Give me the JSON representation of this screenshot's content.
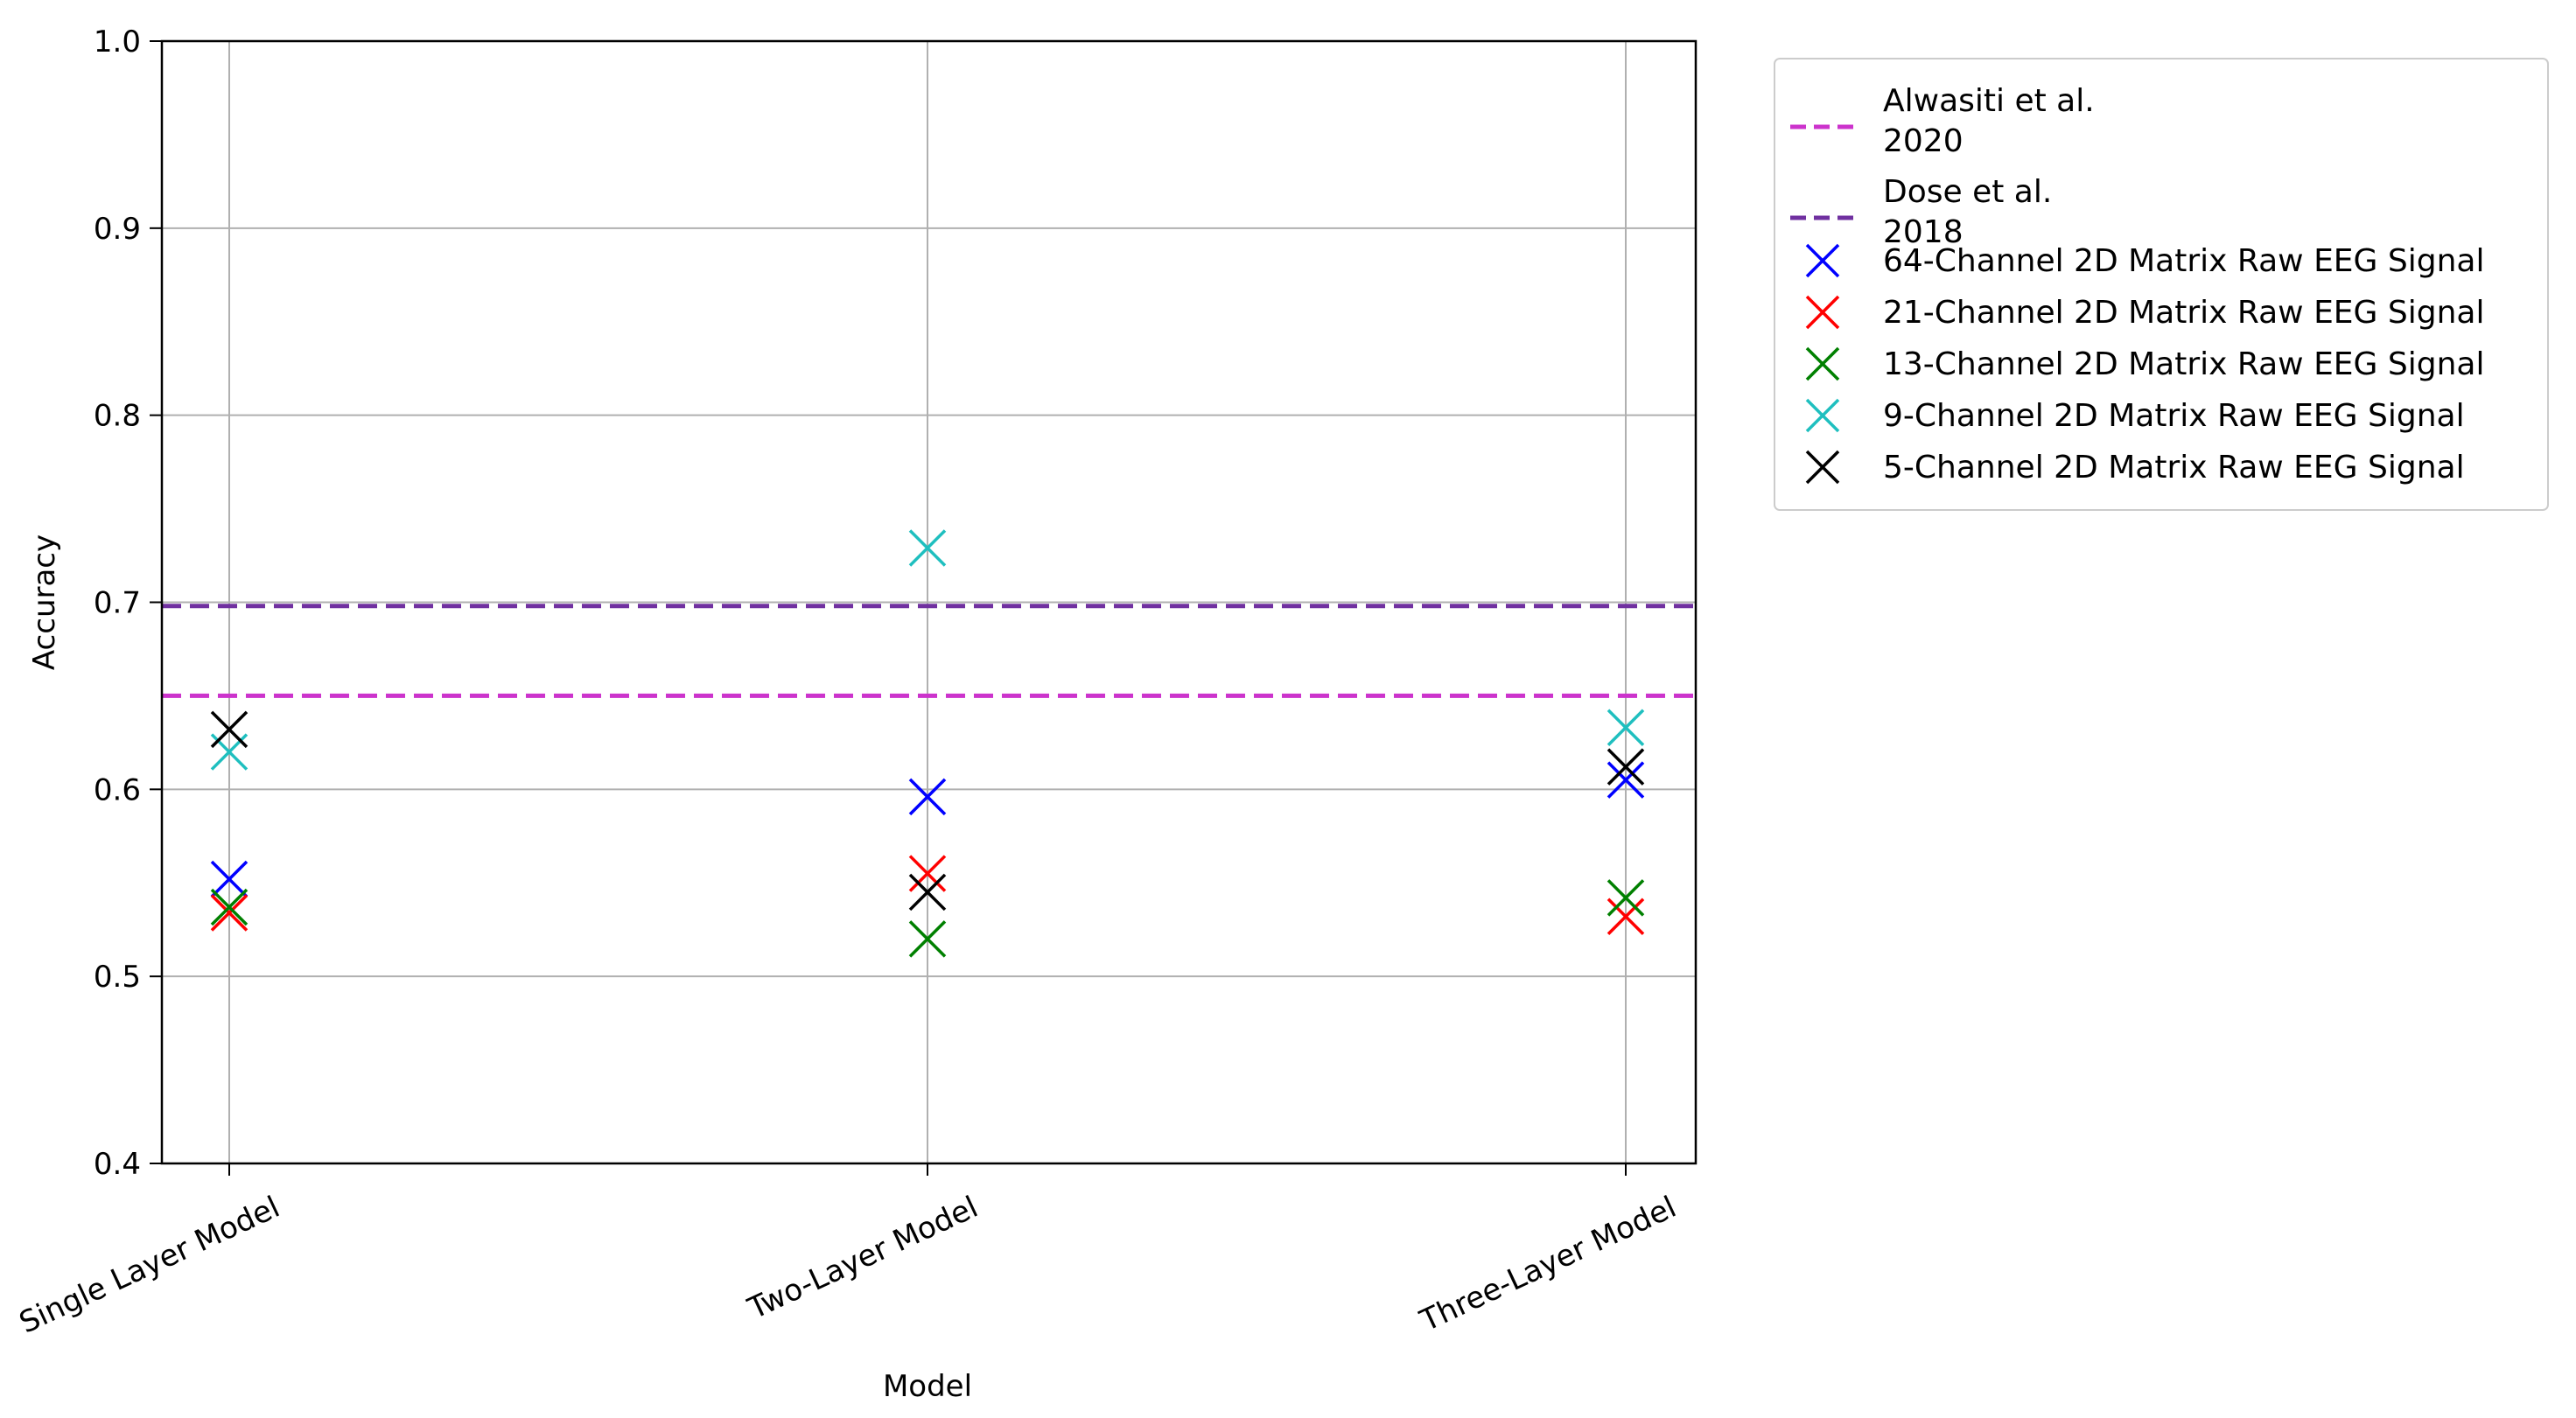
{
  "chart_data": {
    "type": "scatter",
    "title": "",
    "xlabel": "Model",
    "ylabel": "Accuracy",
    "categories": [
      "Single Layer Model",
      "Two-Layer Model",
      "Three-Layer Model"
    ],
    "ylim": [
      0.4,
      1.0
    ],
    "yticks": [
      "0.4",
      "0.5",
      "0.6",
      "0.7",
      "0.8",
      "0.9",
      "1.0"
    ],
    "grid": true,
    "legend_position": "outside-right-top",
    "reference_lines": [
      {
        "name_line1": "Alwasiti et al.",
        "name_line2": "2020",
        "value": 0.65,
        "color": "#cc33cc",
        "style": "dashed"
      },
      {
        "name_line1": "Dose et al.",
        "name_line2": "2018",
        "value": 0.698,
        "color": "#7030a0",
        "style": "dashed"
      }
    ],
    "series": [
      {
        "name": "64-Channel 2D Matrix Raw EEG Signal",
        "color": "#0000ff",
        "values": [
          0.552,
          0.596,
          0.605
        ]
      },
      {
        "name": "21-Channel 2D Matrix Raw EEG Signal",
        "color": "#ff0000",
        "values": [
          0.534,
          0.555,
          0.532
        ]
      },
      {
        "name": "13-Channel 2D Matrix Raw EEG Signal",
        "color": "#008000",
        "values": [
          0.537,
          0.52,
          0.542
        ]
      },
      {
        "name": "9-Channel 2D Matrix Raw EEG Signal",
        "color": "#1fbfbf",
        "values": [
          0.62,
          0.729,
          0.633
        ]
      },
      {
        "name": "5-Channel 2D Matrix Raw EEG Signal",
        "color": "#000000",
        "values": [
          0.632,
          0.545,
          0.612
        ]
      }
    ]
  }
}
